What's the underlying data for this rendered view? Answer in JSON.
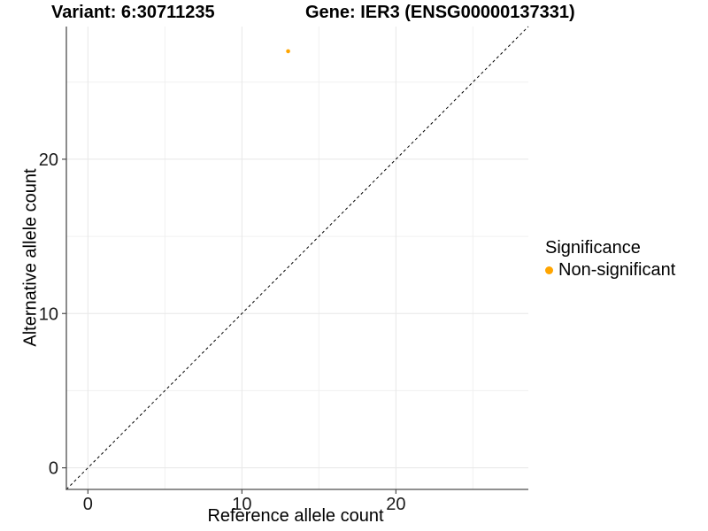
{
  "titles": {
    "variant": "Variant: 6:30711235",
    "gene": "Gene: IER3 (ENSG00000137331)"
  },
  "chart_data": {
    "type": "scatter",
    "xlabel": "Reference allele count",
    "ylabel": "Alternative allele count",
    "xlim": [
      -1.4,
      28.6
    ],
    "ylim": [
      -1.4,
      28.6
    ],
    "x_ticks": [
      0,
      10,
      20
    ],
    "y_ticks": [
      0,
      10,
      20
    ],
    "x_minor_ticks": [
      5,
      15,
      25
    ],
    "y_minor_ticks": [
      5,
      15,
      25
    ],
    "grid": true,
    "identity_line": {
      "style": "dashed",
      "from": [
        -1.4,
        -1.4
      ],
      "to": [
        28.6,
        28.6
      ],
      "color": "#000000"
    },
    "series": [
      {
        "name": "Non-significant",
        "color": "#FFA500",
        "points": [
          {
            "x": 13,
            "y": 27
          }
        ]
      }
    ],
    "legend": {
      "title": "Significance",
      "position": "right",
      "items": [
        {
          "label": "Non-significant",
          "color": "#FFA500"
        }
      ]
    }
  },
  "colors": {
    "background": "#FFFFFF",
    "axis_line": "#4D4D4D",
    "major_grid": "#E7E7E7",
    "minor_grid": "#F0F0F0",
    "tick_text": "#1A1A1A",
    "point": "#FFA500"
  }
}
